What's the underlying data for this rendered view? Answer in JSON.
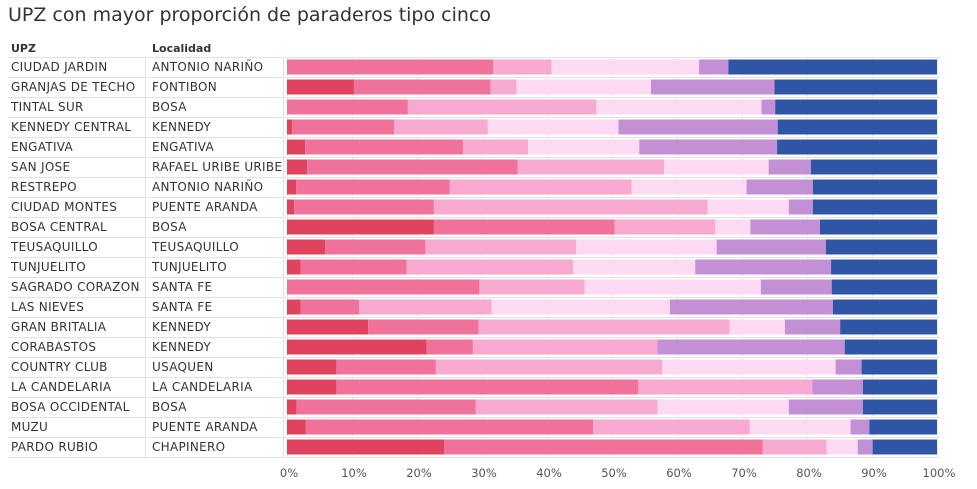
{
  "title": "UPZ con mayor proporción de paraderos tipo cinco",
  "headers": {
    "upz": "UPZ",
    "localidad": "Localidad"
  },
  "chart_data": {
    "type": "bar",
    "orientation": "horizontal",
    "stacked": true,
    "normalized": true,
    "xlim": [
      0,
      100
    ],
    "x_ticks": [
      "0%",
      "10%",
      "20%",
      "30%",
      "40%",
      "50%",
      "60%",
      "70%",
      "80%",
      "90%",
      "100%"
    ],
    "grid": true,
    "colors": [
      "#e0435d",
      "#f07199",
      "#f7a9d2",
      "#fcdaf3",
      "#c38fd5",
      "#2f56a6"
    ],
    "rows": [
      {
        "upz": "CIUDAD JARDIN",
        "localidad": "ANTONIO NARIÑO",
        "segments": [
          0,
          31.7,
          9.0,
          22.7,
          4.5,
          32.1
        ]
      },
      {
        "upz": "GRANJAS DE TECHO",
        "localidad": "FONTIBON",
        "segments": [
          10.3,
          21.0,
          4.0,
          20.7,
          19.0,
          25.0
        ]
      },
      {
        "upz": "TINTAL SUR",
        "localidad": "BOSA",
        "segments": [
          0,
          18.6,
          29.0,
          25.4,
          2.1,
          24.9
        ]
      },
      {
        "upz": "KENNEDY CENTRAL",
        "localidad": "KENNEDY",
        "segments": [
          0.8,
          15.7,
          14.4,
          20.1,
          24.5,
          24.5
        ]
      },
      {
        "upz": "ENGATIVA",
        "localidad": "ENGATIVA",
        "segments": [
          2.8,
          24.3,
          10.0,
          17.1,
          21.2,
          24.6
        ]
      },
      {
        "upz": "SAN JOSE",
        "localidad": "RAFAEL URIBE URIBE",
        "segments": [
          3.1,
          32.4,
          22.5,
          16.1,
          6.5,
          19.4
        ]
      },
      {
        "upz": "RESTREPO",
        "localidad": "ANTONIO NARIÑO",
        "segments": [
          1.4,
          23.6,
          28.0,
          17.7,
          10.2,
          19.1
        ]
      },
      {
        "upz": "CIUDAD MONTES",
        "localidad": "PUENTE ARANDA",
        "segments": [
          1.1,
          21.5,
          42.1,
          12.5,
          3.7,
          19.1
        ]
      },
      {
        "upz": "BOSA CENTRAL",
        "localidad": "BOSA",
        "segments": [
          22.6,
          27.8,
          15.5,
          5.4,
          10.7,
          18.0
        ]
      },
      {
        "upz": "TEUSAQUILLO",
        "localidad": "TEUSAQUILLO",
        "segments": [
          5.9,
          15.4,
          23.2,
          21.6,
          16.8,
          17.1
        ]
      },
      {
        "upz": "TUNJUELITO",
        "localidad": "TUNJUELITO",
        "segments": [
          2.1,
          16.3,
          25.6,
          18.8,
          20.9,
          16.3
        ]
      },
      {
        "upz": "SAGRADO CORAZON",
        "localidad": "SANTA FE",
        "segments": [
          0,
          29.6,
          16.2,
          27.1,
          10.9,
          16.2
        ]
      },
      {
        "upz": "LAS NIEVES",
        "localidad": "SANTA FE",
        "segments": [
          2.1,
          9.0,
          20.4,
          27.4,
          25.1,
          16.0
        ]
      },
      {
        "upz": "GRAN BRITALIA",
        "localidad": "KENNEDY",
        "segments": [
          12.5,
          17.0,
          38.6,
          8.5,
          8.5,
          14.9
        ]
      },
      {
        "upz": "CORABASTOS",
        "localidad": "KENNEDY",
        "segments": [
          21.5,
          7.1,
          28.4,
          0,
          28.8,
          14.2
        ]
      },
      {
        "upz": "COUNTRY CLUB",
        "localidad": "USAQUEN",
        "segments": [
          7.6,
          15.3,
          34.8,
          26.7,
          4.0,
          11.6
        ]
      },
      {
        "upz": "LA CANDELARIA",
        "localidad": "LA CANDELARIA",
        "segments": [
          7.6,
          46.4,
          26.8,
          0,
          7.8,
          11.4
        ]
      },
      {
        "upz": "BOSA OCCIDENTAL",
        "localidad": "BOSA",
        "segments": [
          1.5,
          27.5,
          28.0,
          20.2,
          11.4,
          11.4
        ]
      },
      {
        "upz": "MUZU",
        "localidad": "PUENTE ARANDA",
        "segments": [
          2.9,
          44.2,
          24.1,
          15.5,
          2.9,
          10.4
        ]
      },
      {
        "upz": "PARDO RUBIO",
        "localidad": "CHAPINERO",
        "segments": [
          24.2,
          49.0,
          9.8,
          4.8,
          2.3,
          9.9
        ]
      }
    ]
  }
}
